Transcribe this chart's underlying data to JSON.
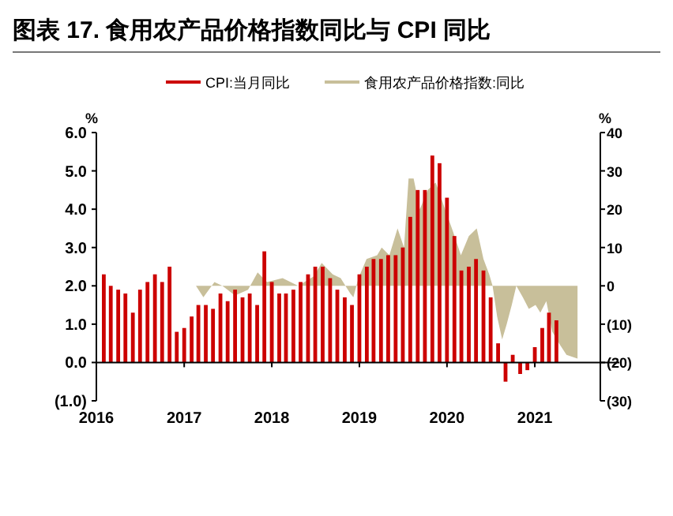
{
  "chart_data": {
    "type": "bar",
    "title": "图表 17. 食用农产品价格指数同比与 CPI 同比",
    "ylabel": "%",
    "y2label": "%",
    "legend": "top",
    "xlim": [
      "2016",
      "2021-10"
    ],
    "xticks": [
      "2016",
      "2017",
      "2018",
      "2019",
      "2020",
      "2021"
    ],
    "ylim": [
      -1,
      6
    ],
    "yticks": [
      {
        "value": -1,
        "label": "(1.0)"
      },
      {
        "value": 0,
        "label": "0.0"
      },
      {
        "value": 1,
        "label": "1.0"
      },
      {
        "value": 2,
        "label": "2.0"
      },
      {
        "value": 3,
        "label": "3.0"
      },
      {
        "value": 4,
        "label": "4.0"
      },
      {
        "value": 5,
        "label": "5.0"
      },
      {
        "value": 6,
        "label": "6.0"
      }
    ],
    "y2lim": [
      -30,
      40
    ],
    "y2ticks": [
      {
        "value": -30,
        "label": "(30)"
      },
      {
        "value": -20,
        "label": "(20)"
      },
      {
        "value": -10,
        "label": "(10)"
      },
      0,
      10,
      20,
      30,
      40
    ],
    "series": [
      {
        "name": "CPI:当月同比",
        "color": "#cc0000",
        "x": [
          "2016-02",
          "2016-03",
          "2016-04",
          "2016-05",
          "2016-06",
          "2016-07",
          "2016-08",
          "2016-09",
          "2016-10",
          "2016-11",
          "2016-12",
          "2017-01",
          "2017-02",
          "2017-03",
          "2017-04",
          "2017-05",
          "2017-06",
          "2017-07",
          "2017-08",
          "2017-09",
          "2017-10",
          "2017-11",
          "2017-12",
          "2018-01",
          "2018-02",
          "2018-03",
          "2018-04",
          "2018-05",
          "2018-06",
          "2018-07",
          "2018-08",
          "2018-09",
          "2018-10",
          "2018-11",
          "2018-12",
          "2019-01",
          "2019-02",
          "2019-03",
          "2019-04",
          "2019-05",
          "2019-06",
          "2019-07",
          "2019-08",
          "2019-09",
          "2019-10",
          "2019-11",
          "2019-12",
          "2020-01",
          "2020-02",
          "2020-03",
          "2020-04",
          "2020-05",
          "2020-06",
          "2020-07",
          "2020-08",
          "2020-09",
          "2020-10",
          "2020-11",
          "2020-12",
          "2021-01",
          "2021-02",
          "2021-03",
          "2021-04"
        ],
        "values": [
          2.3,
          2.0,
          1.9,
          1.8,
          1.3,
          1.9,
          2.1,
          2.3,
          2.1,
          2.5,
          0.8,
          0.9,
          1.2,
          1.5,
          1.5,
          1.4,
          1.8,
          1.6,
          1.9,
          1.7,
          1.8,
          1.5,
          2.9,
          2.1,
          1.8,
          1.8,
          1.9,
          2.1,
          2.3,
          2.5,
          2.5,
          2.2,
          1.9,
          1.7,
          1.5,
          2.3,
          2.5,
          2.7,
          2.7,
          2.8,
          2.8,
          3.0,
          3.8,
          4.5,
          4.5,
          5.4,
          5.2,
          4.3,
          3.3,
          2.4,
          2.5,
          2.7,
          2.4,
          1.7,
          0.5,
          -0.5,
          0.2,
          -0.3,
          -0.2,
          0.4,
          0.9,
          1.3,
          1.1
        ]
      },
      {
        "name": "食用农产品价格指数:同比",
        "type": "area",
        "axis": "y2",
        "color": "#c8bf9a",
        "x": [
          "2016-01-01",
          "2017-02-19",
          "2017-03-22",
          "2017-05-07",
          "2017-06-09",
          "2017-08-01",
          "2017-09-24",
          "2017-11-03",
          "2017-12-12",
          "2018-02-15",
          "2018-04-21",
          "2018-06-25",
          "2018-07-28",
          "2018-09-12",
          "2018-10-15",
          "2018-11-24",
          "2018-12-07",
          "2018-12-28",
          "2019-01-31",
          "2019-03-16",
          "2019-04-04",
          "2019-05-06",
          "2019-06-09",
          "2019-07-06",
          "2019-07-25",
          "2019-08-15",
          "2019-09-10",
          "2019-10-13",
          "2019-11-15",
          "2019-12-24",
          "2020-01-27",
          "2020-02-28",
          "2020-04-01",
          "2020-05-04",
          "2020-06-01",
          "2020-06-25",
          "2020-07-09",
          "2020-07-28",
          "2020-08-18",
          "2020-09-06",
          "2020-09-27",
          "2020-10-16",
          "2020-11-12",
          "2020-12-07",
          "2021-01-04",
          "2021-01-24",
          "2021-02-18",
          "2021-03-15",
          "2021-04-12",
          "2021-05-13",
          "2021-06-28"
        ],
        "values": [
          0,
          0,
          -3,
          1,
          0,
          -2.5,
          -1,
          3.5,
          1,
          2,
          0,
          2.5,
          6,
          3,
          2,
          -2,
          -3,
          2,
          7,
          8,
          10,
          8,
          15,
          10,
          28,
          28,
          20,
          25,
          27,
          20,
          14,
          8,
          13,
          15,
          7,
          3,
          0,
          -8,
          -14,
          -10,
          -5,
          0,
          -3,
          -6,
          -5,
          -7,
          -4,
          -12,
          -15,
          -18,
          -19
        ]
      }
    ]
  }
}
